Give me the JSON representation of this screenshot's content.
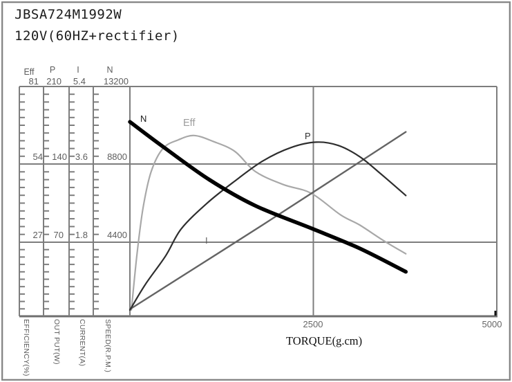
{
  "title": {
    "model": "JBSA724M1992W",
    "power_line": "120V(60HZ+rectifier)"
  },
  "colors": {
    "grid": "#7d7d7d",
    "axis_text": "#5d5d5d",
    "n_curve": "#000000",
    "eff_curve": "#a8a8a8",
    "p_curve": "#2e2e2e",
    "i_curve": "#646464"
  },
  "axes": {
    "columns": [
      {
        "symbol": "Eff",
        "max": "81",
        "mid": "54",
        "low": "27",
        "unit_label": "EFFICIENCY(%)"
      },
      {
        "symbol": "P",
        "max": "210",
        "mid": "140",
        "low": "70",
        "unit_label": "OUT PUT(W)"
      },
      {
        "symbol": "I",
        "max": "5.4",
        "mid": "3.6",
        "low": "1.8",
        "unit_label": "CURRENT(A)"
      },
      {
        "symbol": "N",
        "max": "13200",
        "mid": "8800",
        "low": "4400",
        "unit_label": "SPEED(R.P.M.)"
      }
    ],
    "x_axis": {
      "label": "TORQUE(g.cm)",
      "tick_2500": "2500",
      "tick_5000": "5000"
    }
  },
  "curve_labels": {
    "n": "N",
    "eff": "Eff",
    "p": "P",
    "i": "I"
  },
  "chart_data": {
    "type": "line",
    "title": "JBSA724M1992W 120V(60HZ+rectifier)",
    "xlabel": "TORQUE(g.cm)",
    "x_range": [
      0,
      5000
    ],
    "x_ticks": [
      2500,
      5000
    ],
    "grid": true,
    "legend_position": "inline-curve-labels",
    "series": [
      {
        "name": "N",
        "ylabel": "SPEED(R.P.M.)",
        "color": "#000000",
        "stroke_width": 5.5,
        "y_scale": {
          "top_value": 13200,
          "per_division": 4400,
          "ticks": [
            4400,
            8800,
            13200
          ]
        },
        "points": [
          [
            0,
            11200
          ],
          [
            460,
            9770
          ],
          [
            1080,
            7940
          ],
          [
            1710,
            6460
          ],
          [
            2500,
            5140
          ],
          [
            3130,
            4050
          ],
          [
            3760,
            2730
          ]
        ]
      },
      {
        "name": "Eff",
        "ylabel": "EFFICIENCY(%)",
        "color": "#a8a8a8",
        "stroke_width": 2.2,
        "y_scale": {
          "top_value": 81,
          "per_division": 27,
          "ticks": [
            27,
            54,
            81
          ]
        },
        "points": [
          [
            20,
            3.5
          ],
          [
            95,
            22.5
          ],
          [
            180,
            39
          ],
          [
            290,
            51.5
          ],
          [
            450,
            59.5
          ],
          [
            660,
            62.5
          ],
          [
            875,
            64
          ],
          [
            1130,
            62
          ],
          [
            1430,
            58.5
          ],
          [
            1710,
            51.5
          ],
          [
            2090,
            47
          ],
          [
            2470,
            44
          ],
          [
            2870,
            36.5
          ],
          [
            3130,
            33
          ],
          [
            3460,
            27.5
          ],
          [
            3760,
            23
          ]
        ]
      },
      {
        "name": "P",
        "ylabel": "OUT PUT(W)",
        "color": "#2e2e2e",
        "stroke_width": 2.2,
        "y_scale": {
          "top_value": 210,
          "per_division": 70,
          "ticks": [
            70,
            140,
            210
          ]
        },
        "points": [
          [
            0,
            9
          ],
          [
            210,
            32
          ],
          [
            490,
            58
          ],
          [
            700,
            82
          ],
          [
            1050,
            105
          ],
          [
            1430,
            125
          ],
          [
            1810,
            143
          ],
          [
            2190,
            155
          ],
          [
            2540,
            160
          ],
          [
            2840,
            157
          ],
          [
            3130,
            147
          ],
          [
            3410,
            132
          ],
          [
            3760,
            112
          ]
        ]
      },
      {
        "name": "I",
        "ylabel": "CURRENT(A)",
        "color": "#646464",
        "stroke_width": 2.4,
        "y_scale": {
          "top_value": 5.4,
          "per_division": 1.8,
          "ticks": [
            1.8,
            3.6,
            5.4
          ]
        },
        "points": [
          [
            0,
            0.25
          ],
          [
            1900,
            2.3
          ],
          [
            3760,
            4.35
          ]
        ]
      }
    ]
  }
}
